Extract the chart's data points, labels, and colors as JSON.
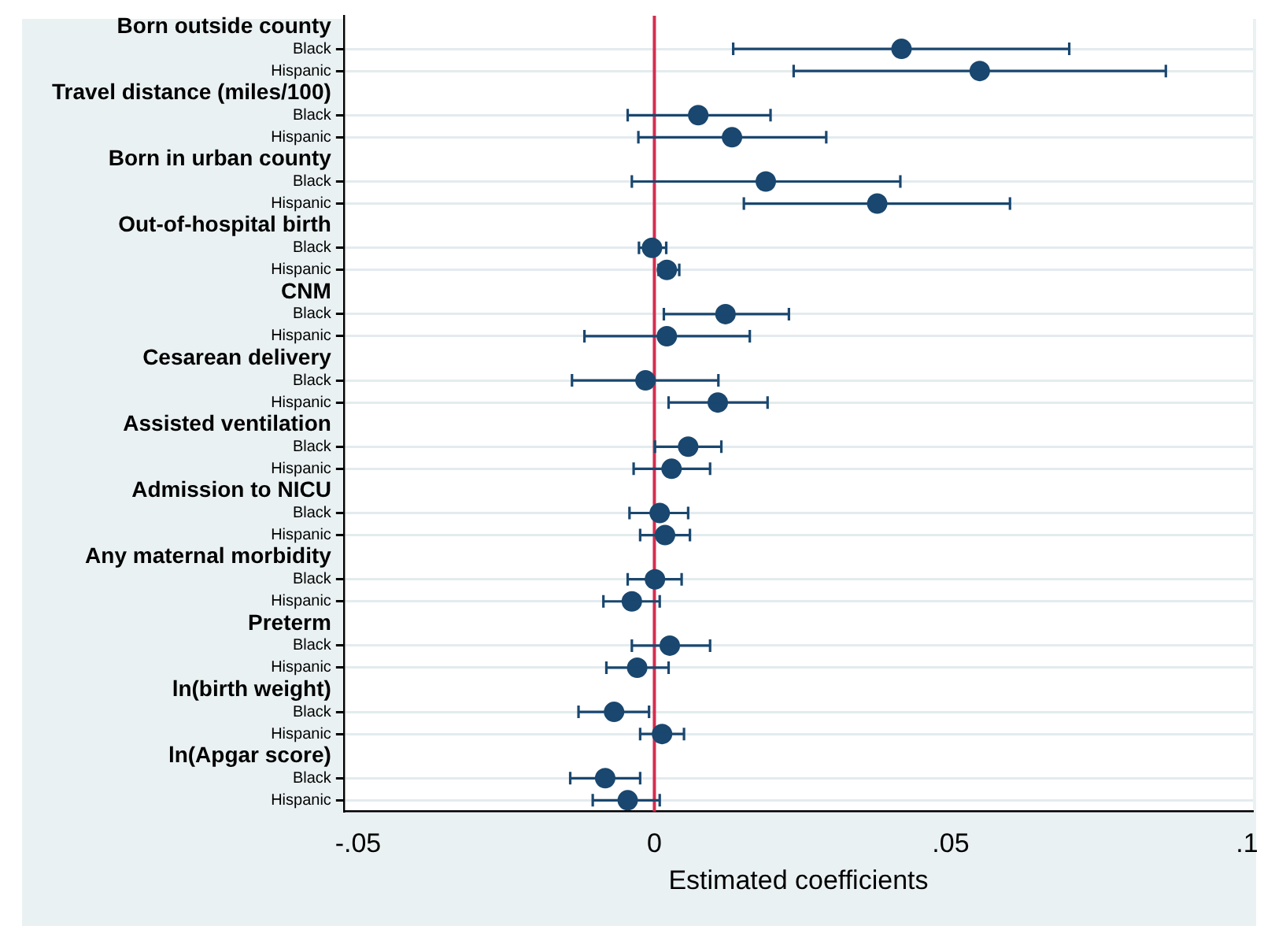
{
  "chart_data": {
    "type": "scatter",
    "orientation": "horizontal",
    "xlabel": "Estimated coefficients",
    "categories": [
      "Born outside county",
      "Black",
      "Hispanic",
      "Travel distance (miles/100)",
      "Black",
      "Hispanic",
      "Born in urban county",
      "Black",
      "Hispanic",
      "Out-of-hospital birth",
      "Black",
      "Hispanic",
      "CNM",
      "Black",
      "Hispanic",
      "Cesarean delivery",
      "Black",
      "Hispanic",
      "Assisted ventilation",
      "Black",
      "Hispanic",
      "Admission to NICU",
      "Black",
      "Hispanic",
      "Any maternal morbidity",
      "Black",
      "Hispanic",
      "Preterm",
      "Black",
      "Hispanic",
      "ln(birth weight)",
      "Black",
      "Hispanic",
      "ln(Apgar score)",
      "Black",
      "Hispanic"
    ],
    "series": [
      {
        "color": "#1a476f",
        "values": [
          null,
          0.0417,
          0.0549,
          null,
          0.0074,
          0.0131,
          null,
          0.0188,
          0.0376,
          null,
          -0.0004,
          0.0021,
          null,
          0.012,
          0.0021,
          null,
          -0.0015,
          0.0107,
          null,
          0.0057,
          0.0029,
          null,
          0.0009,
          0.0018,
          null,
          0.0001,
          -0.0038,
          null,
          0.0026,
          -0.0029,
          null,
          -0.0068,
          0.0013,
          null,
          -0.0083,
          -0.0045
        ],
        "errors": [
          null,
          [
            0.0133,
            0.07
          ],
          [
            0.0235,
            0.0863
          ],
          null,
          [
            -0.0045,
            0.0196
          ],
          [
            -0.0027,
            0.029
          ],
          null,
          [
            -0.0038,
            0.0415
          ],
          [
            0.0151,
            0.06
          ],
          null,
          [
            -0.0026,
            0.002
          ],
          [
            0.0007,
            0.0042
          ],
          null,
          [
            0.0016,
            0.0227
          ],
          [
            -0.0118,
            0.0161
          ],
          null,
          [
            -0.0139,
            0.0108
          ],
          [
            0.0024,
            0.0191
          ],
          null,
          [
            0.0001,
            0.0113
          ],
          [
            -0.0035,
            0.0094
          ],
          null,
          [
            -0.0042,
            0.0057
          ],
          [
            -0.0024,
            0.006
          ],
          null,
          [
            -0.0045,
            0.0046
          ],
          [
            -0.0086,
            0.0009
          ],
          null,
          [
            -0.0038,
            0.0094
          ],
          [
            -0.0081,
            0.0024
          ],
          null,
          [
            -0.0128,
            -0.0009
          ],
          [
            -0.0024,
            0.005
          ],
          null,
          [
            -0.0142,
            -0.0024
          ],
          [
            -0.0104,
            0.0009
          ]
        ]
      }
    ],
    "xlim": [
      -0.0524,
      0.101
    ],
    "xticks": [
      {
        "value": -0.05,
        "label": "-.05"
      },
      {
        "value": 0,
        "label": "0"
      },
      {
        "value": 0.05,
        "label": ".05"
      },
      {
        "value": 0.1,
        "label": ".1"
      }
    ],
    "grid": "y",
    "legend": false,
    "marker": "circle",
    "ref_lines": [
      {
        "axis": "x",
        "value": 0,
        "color": "#d62d4f"
      }
    ]
  }
}
